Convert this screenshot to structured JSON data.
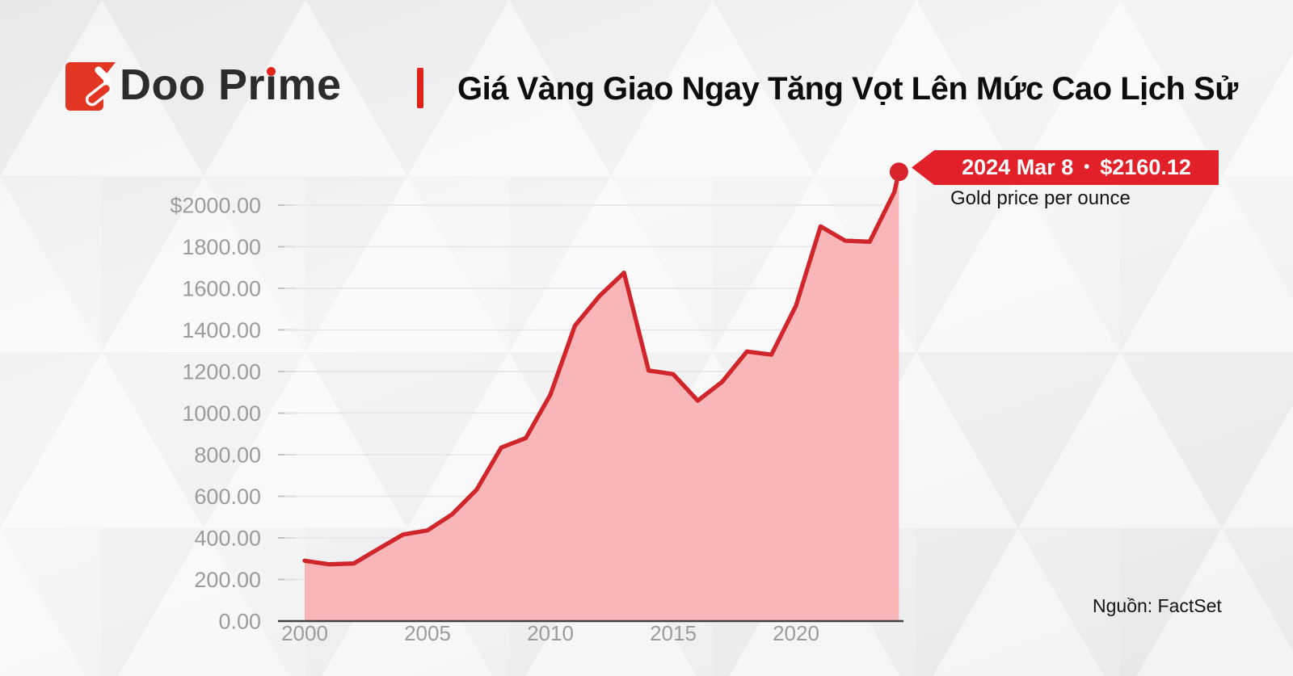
{
  "brand": {
    "name": "Doo Prime",
    "wordmark_parts": {
      "pre": "Doo Pr",
      "i_base": "ı",
      "post": "me"
    }
  },
  "header": {
    "title": "Giá Vàng Giao Ngay Tăng Vọt Lên Mức Cao Lịch Sử"
  },
  "callout": {
    "date": "2024 Mar 8",
    "separator": "•",
    "price": "$2160.12",
    "subtitle": "Gold price per ounce"
  },
  "source": {
    "label": "Nguồn: FactSet"
  },
  "colors": {
    "brand_red": "#e23522",
    "ribbon_red": "#e1202a",
    "line_red": "#d0252b",
    "area_pink": "#f8b6b8",
    "grid_gray": "#e5e5e7",
    "tick_gray": "#c2c2c4",
    "axis_label_gray": "#9c9c9c",
    "baseline_dark": "#43403f",
    "title_black": "#0d0d0d"
  },
  "chart_data": {
    "type": "area",
    "title": "Gold price per ounce",
    "unit": "USD per ounce",
    "xlim": [
      2000,
      2024.19
    ],
    "ylim": [
      0,
      2160.12
    ],
    "grid": "horizontal",
    "legend": "none",
    "points": [
      [
        2000,
        290
      ],
      [
        2001,
        273
      ],
      [
        2002,
        277
      ],
      [
        2003,
        347
      ],
      [
        2004,
        416
      ],
      [
        2005,
        436
      ],
      [
        2006,
        513
      ],
      [
        2007,
        632
      ],
      [
        2008,
        834
      ],
      [
        2009,
        880
      ],
      [
        2010,
        1088
      ],
      [
        2011,
        1420
      ],
      [
        2012,
        1563
      ],
      [
        2013,
        1675
      ],
      [
        2014,
        1205
      ],
      [
        2015,
        1187
      ],
      [
        2016,
        1060
      ],
      [
        2017,
        1151
      ],
      [
        2018,
        1296
      ],
      [
        2019,
        1281
      ],
      [
        2020,
        1517
      ],
      [
        2021,
        1898
      ],
      [
        2022,
        1829
      ],
      [
        2023,
        1824
      ],
      [
        2024,
        2062
      ],
      [
        2024.19,
        2160.12
      ]
    ],
    "note": "Spot gold price in USD/oz at each year position; final highlighted point is 2024 Mar 8 = $2160.12",
    "y_ticks": [
      {
        "value": 2000,
        "label": "$2000.00"
      },
      {
        "value": 1800,
        "label": "1800.00"
      },
      {
        "value": 1600,
        "label": "1600.00"
      },
      {
        "value": 1400,
        "label": "1400.00"
      },
      {
        "value": 1200,
        "label": "1200.00"
      },
      {
        "value": 1000,
        "label": "1000.00"
      },
      {
        "value": 800,
        "label": "800.00"
      },
      {
        "value": 600,
        "label": "600.00"
      },
      {
        "value": 400,
        "label": "400.00"
      },
      {
        "value": 200,
        "label": "200.00"
      },
      {
        "value": 0,
        "label": "0.00"
      }
    ],
    "x_ticks": [
      {
        "value": 2000,
        "label": "2000"
      },
      {
        "value": 2005,
        "label": "2005"
      },
      {
        "value": 2010,
        "label": "2010"
      },
      {
        "value": 2015,
        "label": "2015"
      },
      {
        "value": 2020,
        "label": "2020"
      }
    ],
    "highlight": {
      "x": 2024.19,
      "value": 2160.12,
      "date": "2024 Mar 8",
      "price": "$2160.12"
    },
    "colors": {
      "line": "#d0252b",
      "fill": "#f8b6b8",
      "dot": "#d8232b"
    }
  }
}
